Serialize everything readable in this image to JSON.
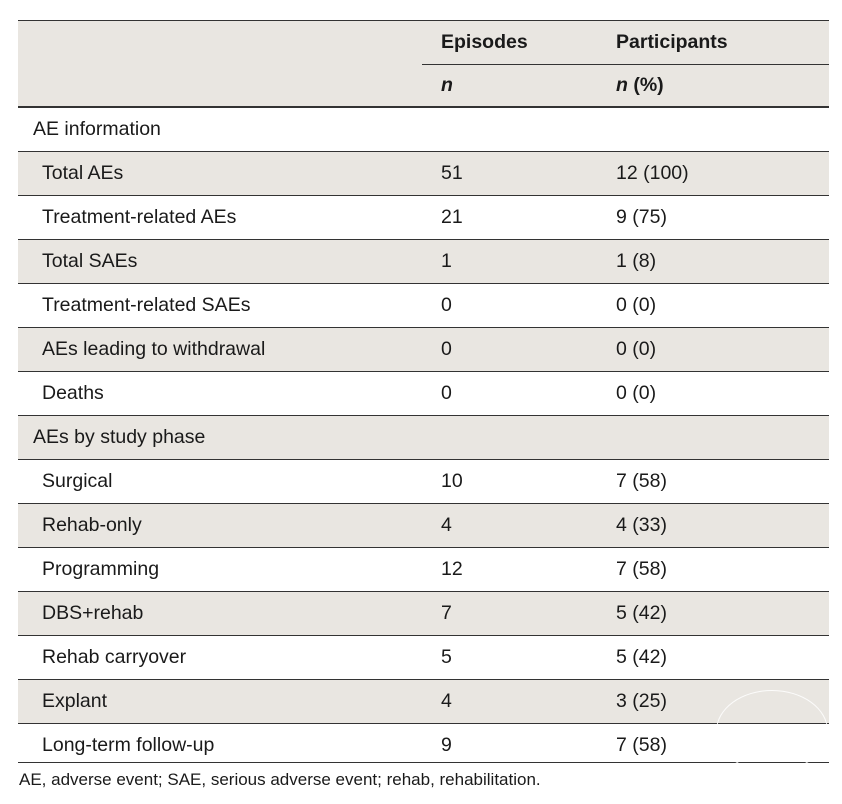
{
  "header": {
    "col_episodes": "Episodes",
    "col_participants": "Participants",
    "sub_episodes_n": "n",
    "sub_participants_n": "n",
    "sub_participants_pct": "(%)"
  },
  "sections": [
    {
      "title": "AE information",
      "rows": [
        {
          "label": "Total AEs",
          "episodes": "51",
          "participants": "12 (100)"
        },
        {
          "label": "Treatment-related AEs",
          "episodes": "21",
          "participants": "9 (75)"
        },
        {
          "label": "Total SAEs",
          "episodes": "1",
          "participants": "1 (8)"
        },
        {
          "label": "Treatment-related SAEs",
          "episodes": "0",
          "participants": "0 (0)"
        },
        {
          "label": "AEs leading to withdrawal",
          "episodes": "0",
          "participants": "0 (0)"
        },
        {
          "label": "Deaths",
          "episodes": "0",
          "participants": "0 (0)"
        }
      ]
    },
    {
      "title": "AEs by study phase",
      "rows": [
        {
          "label": "Surgical",
          "episodes": "10",
          "participants": "7 (58)"
        },
        {
          "label": "Rehab-only",
          "episodes": "4",
          "participants": "4 (33)"
        },
        {
          "label": "Programming",
          "episodes": "12",
          "participants": "7 (58)"
        },
        {
          "label": "DBS+rehab",
          "episodes": "7",
          "participants": "5 (42)"
        },
        {
          "label": "Rehab carryover",
          "episodes": "5",
          "participants": "5 (42)"
        },
        {
          "label": "Explant",
          "episodes": "4",
          "participants": "3 (25)"
        },
        {
          "label": "Long-term follow-up",
          "episodes": "9",
          "participants": "7 (58)"
        }
      ]
    }
  ],
  "footnote": "AE, adverse event; SAE, serious adverse event; rehab, rehabilitation."
}
